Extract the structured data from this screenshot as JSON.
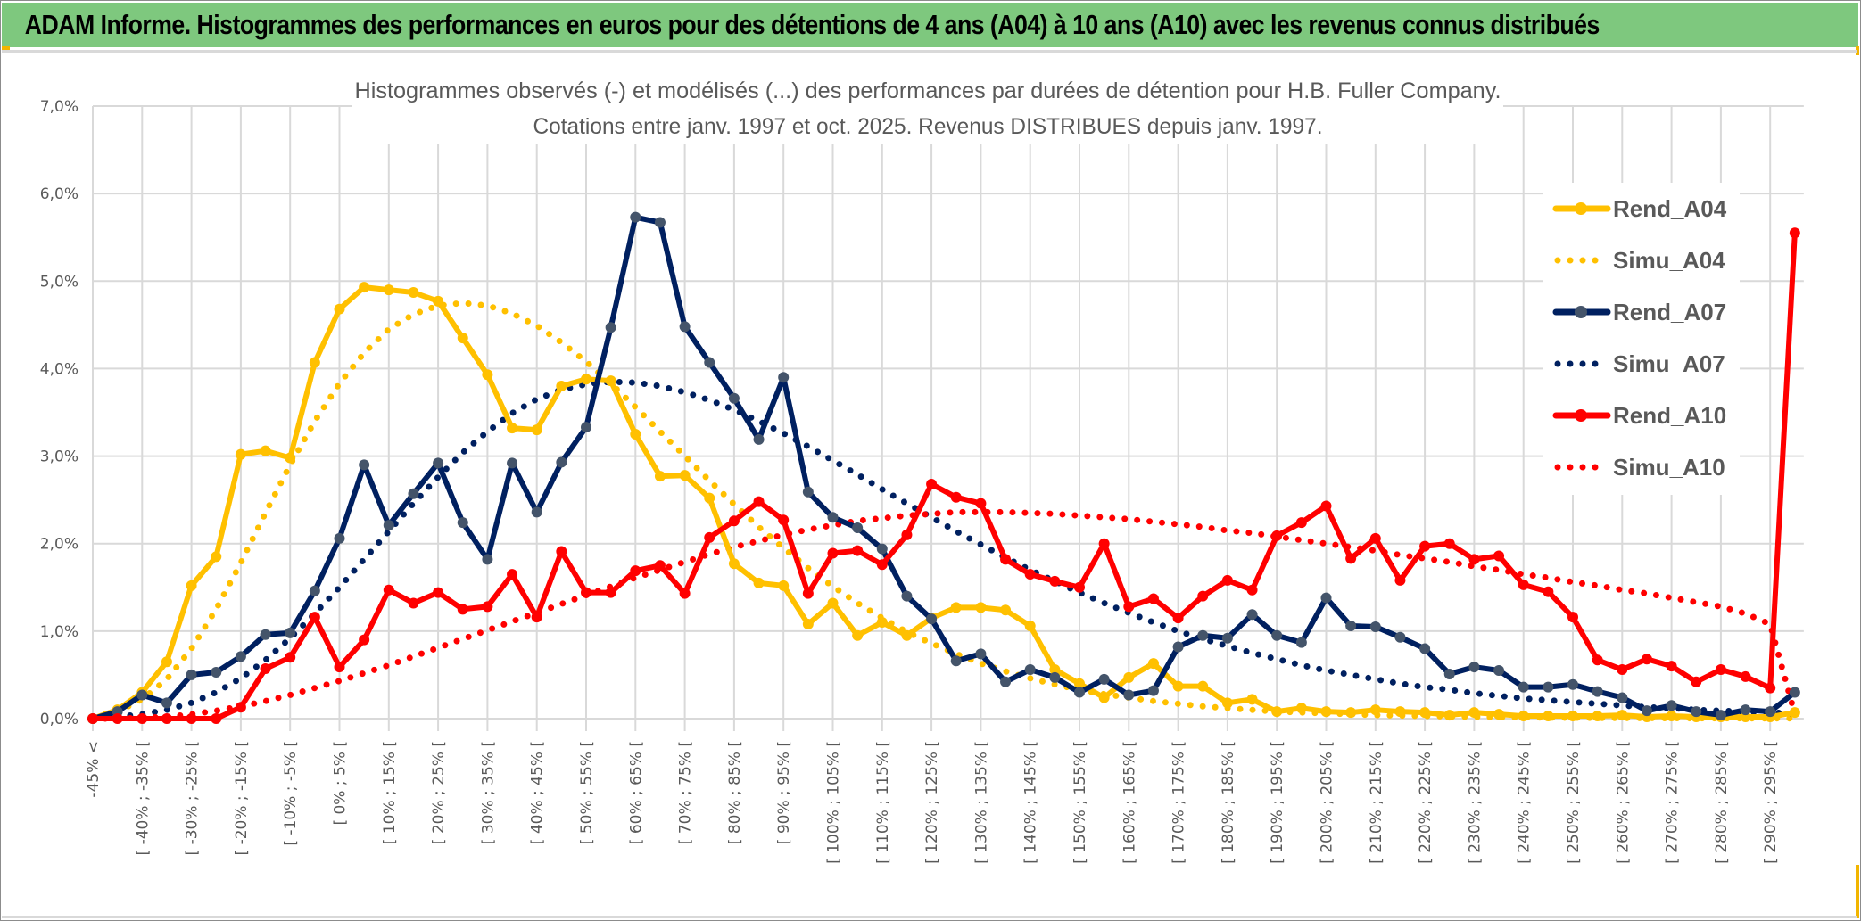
{
  "banner": {
    "title": "ADAM Informe. Histogrammes des performances en euros pour des détentions de 4 ans (A04) à 10 ans (A10) avec les revenus connus distribués"
  },
  "chart_data": {
    "type": "line",
    "title": "Histogrammes observés (-) et modélisés (...) des performances par durées de détention pour H.B. Fuller Company.",
    "subtitle": "Cotations entre janv. 1997 et oct. 2025. Revenus DISTRIBUES depuis janv. 1997.",
    "xlabel": "",
    "ylabel": "",
    "ylim": [
      0,
      7
    ],
    "y_unit": "%",
    "y_ticks": [
      "0,0%",
      "1,0%",
      "2,0%",
      "3,0%",
      "4,0%",
      "5,0%",
      "6,0%",
      "7,0%"
    ],
    "grid": true,
    "legend_position": "right",
    "x_tick_labels": [
      "-45% <",
      "[ -40% ; -35% [",
      "[ -30% ; -25% [",
      "[ -20% ; -15% [",
      "[ -10% ; -5% [",
      "[ 0% ; 5% [",
      "[ 10% ; 15% [",
      "[ 20% ; 25% [",
      "[ 30% ; 35% [",
      "[ 40% ; 45% [",
      "[ 50% ; 55% [",
      "[ 60% ; 65% [",
      "[ 70% ; 75% [",
      "[ 80% ; 85% [",
      "[ 90% ; 95% [",
      "[ 100% ; 105% [",
      "[ 110% ; 115% [",
      "[ 120% ; 125% [",
      "[ 130% ; 135% [",
      "[ 140% ; 145% [",
      "[ 150% ; 155% [",
      "[ 160% ; 165% [",
      "[ 170% ; 175% [",
      "[ 180% ; 185% [",
      "[ 190% ; 195% [",
      "[ 200% ; 205% [",
      "[ 210% ; 215% [",
      "[ 220% ; 225% [",
      "[ 230% ; 235% [",
      "[ 240% ; 245% [",
      "[ 250% ; 255% [",
      "[ 260% ; 265% [",
      "[ 270% ; 275% [",
      "[ 280% ; 285% [",
      "[ 290% ; 295% ["
    ],
    "n_points": 70,
    "series": [
      {
        "name": "Rend_A04",
        "color": "#ffc000",
        "style": "solid-marker",
        "values": [
          0.0,
          0.1,
          0.3,
          0.65,
          1.52,
          1.85,
          3.02,
          3.06,
          2.98,
          4.07,
          4.68,
          4.93,
          4.9,
          4.87,
          4.77,
          4.35,
          3.93,
          3.32,
          3.3,
          3.8,
          3.88,
          3.86,
          3.25,
          2.77,
          2.78,
          2.52,
          1.77,
          1.55,
          1.52,
          1.08,
          1.32,
          0.95,
          1.1,
          0.95,
          1.15,
          1.27,
          1.27,
          1.24,
          1.06,
          0.56,
          0.4,
          0.24,
          0.47,
          0.63,
          0.37,
          0.37,
          0.18,
          0.22,
          0.08,
          0.12,
          0.08,
          0.07,
          0.1,
          0.08,
          0.07,
          0.04,
          0.07,
          0.05,
          0.03,
          0.03,
          0.03,
          0.03,
          0.04,
          0.02,
          0.03,
          0.02,
          0.02,
          0.02,
          0.02,
          0.07
        ]
      },
      {
        "name": "Simu_A04",
        "color": "#ffc000",
        "style": "dotted",
        "values": [
          0.02,
          0.08,
          0.22,
          0.45,
          0.8,
          1.25,
          1.78,
          2.35,
          2.9,
          3.4,
          3.83,
          4.18,
          4.45,
          4.62,
          4.72,
          4.75,
          4.72,
          4.63,
          4.49,
          4.3,
          4.08,
          3.83,
          3.56,
          3.28,
          3.0,
          2.72,
          2.45,
          2.19,
          1.95,
          1.72,
          1.51,
          1.32,
          1.15,
          0.99,
          0.86,
          0.74,
          0.63,
          0.54,
          0.46,
          0.39,
          0.33,
          0.28,
          0.24,
          0.2,
          0.17,
          0.14,
          0.12,
          0.1,
          0.08,
          0.07,
          0.06,
          0.05,
          0.04,
          0.035,
          0.03,
          0.025,
          0.02,
          0.017,
          0.014,
          0.012,
          0.01,
          0.008,
          0.007,
          0.006,
          0.005,
          0.004,
          0.004,
          0.003,
          0.003,
          0.003
        ]
      },
      {
        "name": "Rend_A07",
        "color": "#002060",
        "marker_color": "#44546a",
        "style": "solid-marker",
        "values": [
          0.0,
          0.08,
          0.27,
          0.18,
          0.5,
          0.53,
          0.71,
          0.96,
          0.98,
          1.46,
          2.06,
          2.9,
          2.21,
          2.57,
          2.92,
          2.24,
          1.82,
          2.92,
          2.36,
          2.93,
          3.33,
          4.47,
          5.73,
          5.67,
          4.48,
          4.07,
          3.66,
          3.19,
          3.9,
          2.59,
          2.3,
          2.18,
          1.94,
          1.4,
          1.14,
          0.66,
          0.74,
          0.42,
          0.56,
          0.47,
          0.3,
          0.45,
          0.27,
          0.32,
          0.82,
          0.95,
          0.92,
          1.19,
          0.95,
          0.87,
          1.38,
          1.06,
          1.05,
          0.93,
          0.8,
          0.51,
          0.59,
          0.55,
          0.36,
          0.36,
          0.39,
          0.31,
          0.24,
          0.09,
          0.15,
          0.08,
          0.04,
          0.1,
          0.08,
          0.3
        ]
      },
      {
        "name": "Simu_A07",
        "color": "#002060",
        "style": "dotted",
        "values": [
          0.0,
          0.02,
          0.05,
          0.1,
          0.18,
          0.3,
          0.46,
          0.67,
          0.92,
          1.2,
          1.5,
          1.82,
          2.14,
          2.46,
          2.76,
          3.04,
          3.28,
          3.49,
          3.65,
          3.76,
          3.82,
          3.85,
          3.84,
          3.8,
          3.73,
          3.64,
          3.53,
          3.4,
          3.26,
          3.11,
          2.95,
          2.79,
          2.62,
          2.46,
          2.3,
          2.14,
          1.99,
          1.84,
          1.7,
          1.57,
          1.44,
          1.32,
          1.21,
          1.1,
          1.0,
          0.91,
          0.83,
          0.75,
          0.68,
          0.61,
          0.55,
          0.5,
          0.45,
          0.4,
          0.36,
          0.33,
          0.29,
          0.26,
          0.23,
          0.21,
          0.19,
          0.17,
          0.15,
          0.13,
          0.12,
          0.1,
          0.09,
          0.08,
          0.07,
          0.06
        ]
      },
      {
        "name": "Rend_A10",
        "color": "#ff0000",
        "style": "solid-marker",
        "values": [
          0.0,
          0.0,
          0.0,
          0.0,
          0.0,
          0.0,
          0.13,
          0.57,
          0.7,
          1.16,
          0.59,
          0.9,
          1.47,
          1.32,
          1.44,
          1.25,
          1.28,
          1.65,
          1.16,
          1.91,
          1.44,
          1.44,
          1.69,
          1.75,
          1.43,
          2.07,
          2.26,
          2.48,
          2.27,
          1.43,
          1.89,
          1.92,
          1.76,
          2.1,
          2.68,
          2.53,
          2.46,
          1.82,
          1.65,
          1.57,
          1.5,
          2.0,
          1.28,
          1.37,
          1.15,
          1.4,
          1.58,
          1.47,
          2.09,
          2.24,
          2.43,
          1.83,
          2.06,
          1.58,
          1.97,
          2.0,
          1.82,
          1.86,
          1.53,
          1.45,
          1.16,
          0.67,
          0.56,
          0.68,
          0.6,
          0.42,
          0.56,
          0.48,
          0.35,
          5.55
        ]
      },
      {
        "name": "Simu_A10",
        "color": "#ff0000",
        "style": "dotted",
        "values": [
          0.0,
          0.0,
          0.01,
          0.02,
          0.05,
          0.09,
          0.14,
          0.2,
          0.27,
          0.35,
          0.43,
          0.52,
          0.61,
          0.71,
          0.81,
          0.91,
          1.01,
          1.11,
          1.21,
          1.31,
          1.41,
          1.51,
          1.61,
          1.7,
          1.79,
          1.88,
          1.96,
          2.03,
          2.1,
          2.16,
          2.21,
          2.26,
          2.29,
          2.32,
          2.34,
          2.36,
          2.36,
          2.36,
          2.35,
          2.34,
          2.32,
          2.3,
          2.28,
          2.25,
          2.22,
          2.19,
          2.15,
          2.12,
          2.08,
          2.04,
          2.0,
          1.96,
          1.92,
          1.87,
          1.83,
          1.79,
          1.74,
          1.7,
          1.65,
          1.61,
          1.56,
          1.52,
          1.47,
          1.43,
          1.38,
          1.33,
          1.28,
          1.2,
          1.08,
          0.05
        ]
      }
    ]
  }
}
